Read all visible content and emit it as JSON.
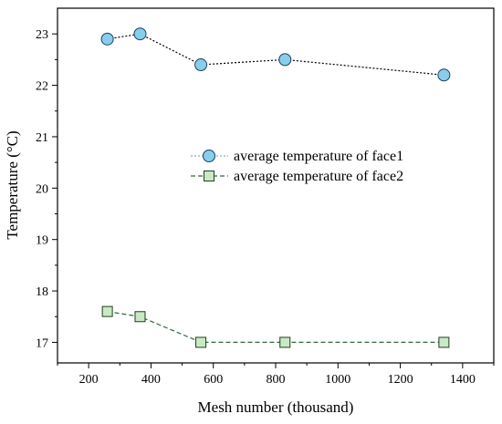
{
  "chart_data": {
    "type": "line",
    "xlabel": "Mesh number (thousand)",
    "ylabel": "Temperature (°C)",
    "xlim": [
      100,
      1500
    ],
    "ylim": [
      16.6,
      23.5
    ],
    "x_ticks": [
      200,
      400,
      600,
      800,
      1000,
      1200,
      1400
    ],
    "y_ticks": [
      17,
      18,
      19,
      20,
      21,
      22,
      23
    ],
    "grid": false,
    "legend_position": "center-right",
    "series": [
      {
        "name": "average temperature of face1",
        "marker": "circle",
        "line_style": "dotted",
        "line_color": "#000000",
        "marker_fill": "#87ceeb",
        "x": [
          260,
          365,
          560,
          830,
          1340
        ],
        "y": [
          22.9,
          23.0,
          22.4,
          22.5,
          22.2
        ]
      },
      {
        "name": "average temperature of face2",
        "marker": "square",
        "line_style": "dashed",
        "line_color": "#2f6b3a",
        "marker_fill": "#c9e8c4",
        "x": [
          260,
          365,
          560,
          830,
          1340
        ],
        "y": [
          17.6,
          17.5,
          17.0,
          17.0,
          17.0
        ]
      }
    ]
  }
}
